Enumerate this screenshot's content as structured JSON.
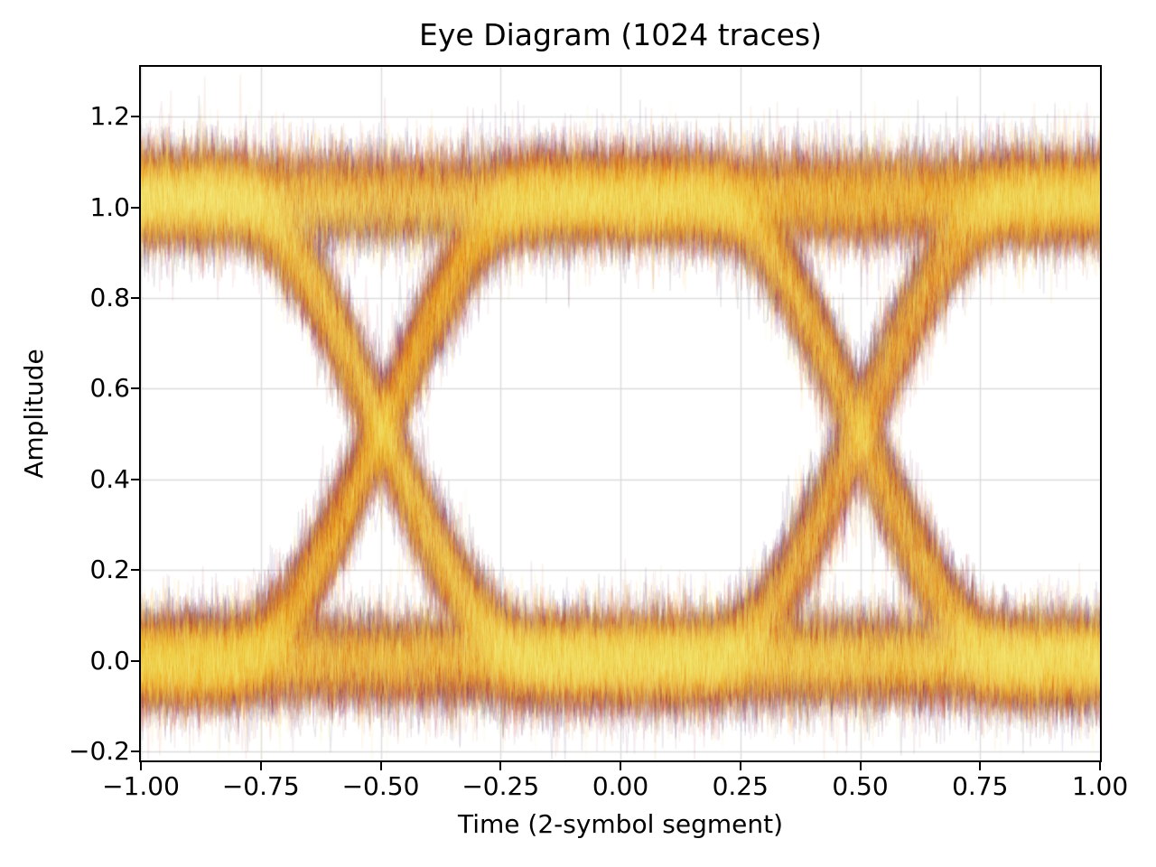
{
  "chart_data": {
    "type": "line",
    "subtype": "eye-diagram",
    "title": "Eye Diagram (1024 traces)",
    "xlabel": "Time (2-symbol segment)",
    "ylabel": "Amplitude",
    "xlim": [
      -1.0,
      1.0
    ],
    "ylim": [
      -0.22,
      1.31
    ],
    "xticks": [
      -1.0,
      -0.75,
      -0.5,
      -0.25,
      0.0,
      0.25,
      0.5,
      0.75,
      1.0
    ],
    "xtick_labels": [
      "−1.00",
      "−0.75",
      "−0.50",
      "−0.25",
      "0.00",
      "0.25",
      "0.50",
      "0.75",
      "1.00"
    ],
    "yticks": [
      -0.2,
      0.0,
      0.2,
      0.4,
      0.6,
      0.8,
      1.0,
      1.2
    ],
    "ytick_labels": [
      "−0.2",
      "0.0",
      "0.2",
      "0.4",
      "0.6",
      "0.8",
      "1.0",
      "1.2"
    ],
    "grid": true,
    "grid_color": "#dcdcdc",
    "grid_linewidth": 1.4,
    "spine_color": "#000000",
    "background_color": "#ffffff",
    "num_traces": 1024,
    "points_per_trace": 512,
    "signal": {
      "level_low": 0.0,
      "level_high": 1.02,
      "transition_centers": [
        -0.5,
        0.5
      ],
      "transition_width": 0.64,
      "crossing_amplitude": 0.5,
      "noise_sigma": 0.046,
      "noise_spread": 0.5,
      "level_jitter_sigma": 0.02,
      "timing_jitter_sigma": 0.016,
      "ripple_amplitude": 0.014
    },
    "style": {
      "colormap": "inferno",
      "colormap_stops": [
        "#000004",
        "#160b39",
        "#420a68",
        "#6a176e",
        "#932667",
        "#bc3754",
        "#dd513a",
        "#f37819",
        "#fca50a",
        "#f6d746",
        "#fcffa4"
      ],
      "stroke_alpha": 0.1,
      "stroke_width": 1.3,
      "seed": 1234
    }
  }
}
